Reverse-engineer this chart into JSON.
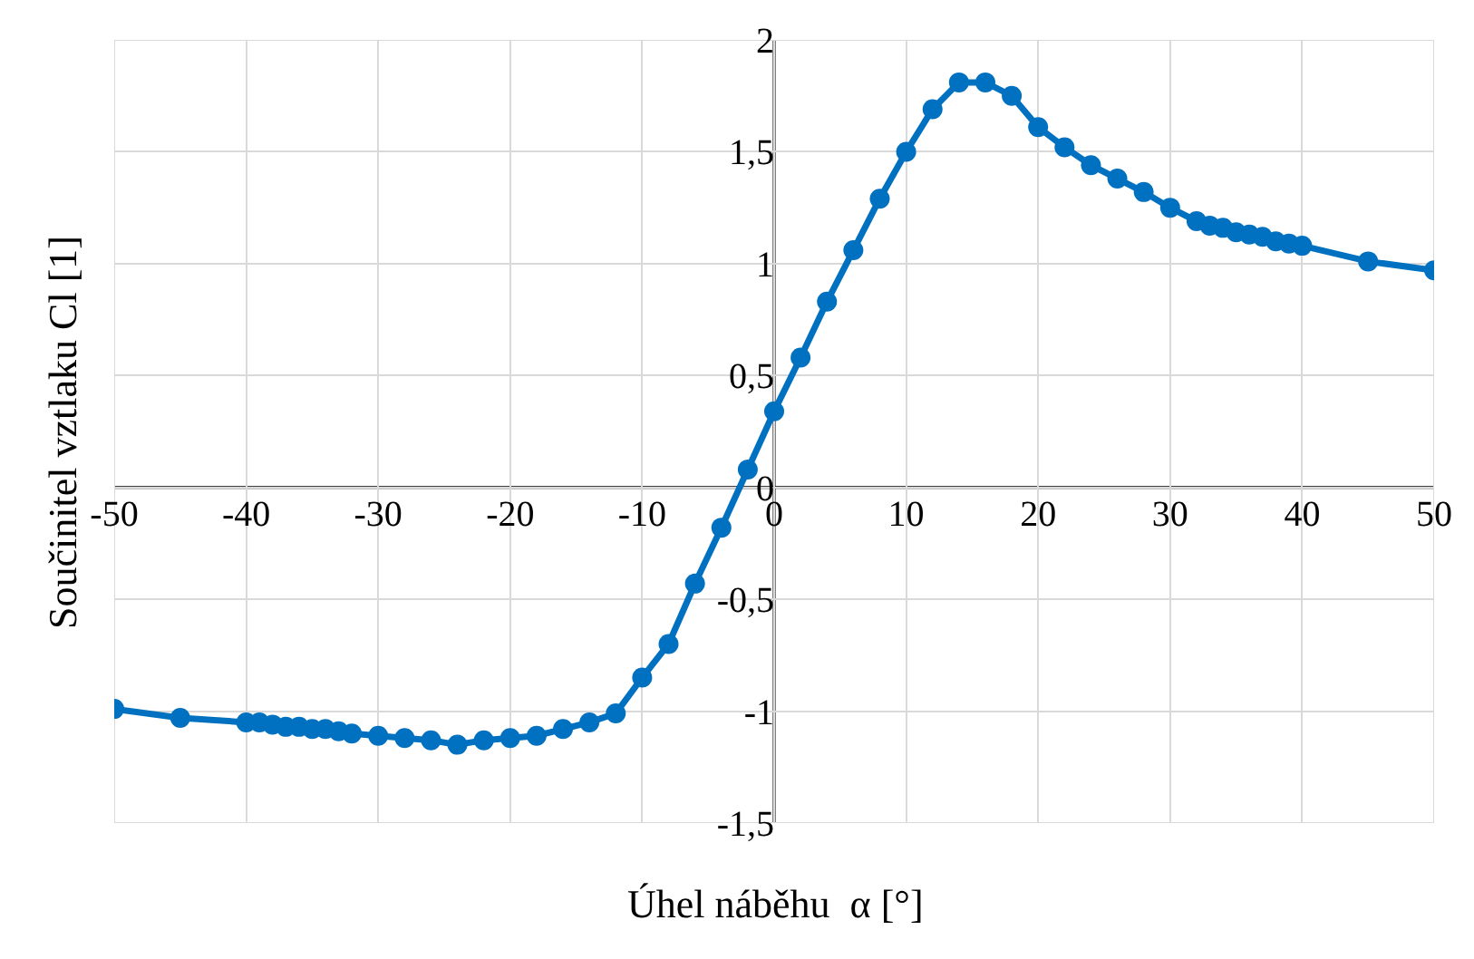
{
  "chart_data": {
    "type": "line",
    "xlabel": "Úhel náběhu  α [°]",
    "ylabel": "Součinitel vztlaku Cl [1]",
    "x": [
      -50,
      -45,
      -40,
      -39,
      -38,
      -37,
      -36,
      -35,
      -34,
      -33,
      -32,
      -30,
      -28,
      -26,
      -24,
      -22,
      -20,
      -18,
      -16,
      -14,
      -12,
      -10,
      -8,
      -6,
      -4,
      -2,
      0,
      2,
      4,
      6,
      8,
      10,
      12,
      14,
      16,
      18,
      20,
      22,
      24,
      26,
      28,
      30,
      32,
      33,
      34,
      35,
      36,
      37,
      38,
      39,
      40,
      45,
      50
    ],
    "series": [
      {
        "color": "#0070c0",
        "values": [
          -0.99,
          -1.03,
          -1.05,
          -1.05,
          -1.06,
          -1.07,
          -1.07,
          -1.08,
          -1.08,
          -1.09,
          -1.1,
          -1.11,
          -1.12,
          -1.13,
          -1.15,
          -1.13,
          -1.12,
          -1.11,
          -1.08,
          -1.05,
          -1.01,
          -0.85,
          -0.7,
          -0.43,
          -0.18,
          0.08,
          0.34,
          0.58,
          0.83,
          1.06,
          1.29,
          1.5,
          1.69,
          1.81,
          1.81,
          1.75,
          1.61,
          1.52,
          1.44,
          1.38,
          1.32,
          1.25,
          1.19,
          1.17,
          1.16,
          1.14,
          1.13,
          1.12,
          1.1,
          1.09,
          1.08,
          1.01,
          0.97
        ]
      }
    ],
    "xlim": [
      -50,
      50
    ],
    "xticks": [
      -50,
      -40,
      -30,
      -20,
      -10,
      0,
      10,
      20,
      30,
      40,
      50
    ],
    "ylim": [
      -1.5,
      2
    ],
    "yticks": [
      {
        "value": -1.5,
        "label": "-1,5"
      },
      -1,
      {
        "value": -0.5,
        "label": "-0,5"
      },
      0,
      {
        "value": 0.5,
        "label": "0,5"
      },
      1,
      {
        "value": 1.5,
        "label": "1,5"
      },
      2
    ],
    "grid": true,
    "marker": "circle",
    "line_style": "solid"
  }
}
